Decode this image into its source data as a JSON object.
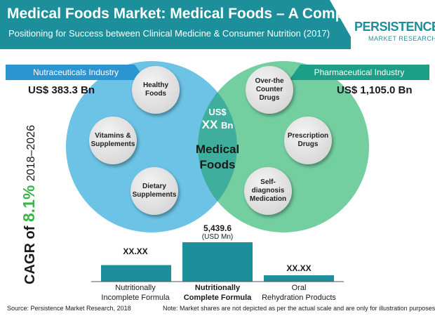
{
  "header": {
    "title": "Medical Foods Market: Medical Foods – A Comparison",
    "subtitle": "Positioning for Success between Clinical Medicine & Consumer Nutrition (2017)"
  },
  "logo": {
    "top": "PERSISTENCE",
    "bottom": "MARKET RESEARCH"
  },
  "left_segment": {
    "label": "Nutraceuticals Industry",
    "value": "US$ 383.3 Bn"
  },
  "right_segment": {
    "label": "Pharmaceutical Industry",
    "value": "US$ 1,105.0 Bn"
  },
  "left_bubbles": [
    {
      "line1": "Healthy",
      "line2": "Foods"
    },
    {
      "line1": "Vitamins &",
      "line2": "Supplements"
    },
    {
      "line1": "Dietary",
      "line2": "Supplements"
    }
  ],
  "right_bubbles": [
    {
      "line1": "Over-the",
      "line2": "Counter Drugs"
    },
    {
      "line1": "Prescription",
      "line2": "Drugs"
    },
    {
      "line1": "Self-diagnosis",
      "line2": "Medication"
    }
  ],
  "center": {
    "currency": "US$",
    "value": "XX",
    "unit": "Bn",
    "line1": "Medical",
    "line2": "Foods"
  },
  "cagr": {
    "prefix": "CAGR of",
    "value": "8.1%",
    "years": "2018–2026"
  },
  "colors": {
    "header": "#1d8f9b",
    "left_circle": "#6cc3e6",
    "right_circle": "#74cfa0",
    "overlap": "#3fae9c",
    "bar": "#1d8f9b",
    "cagr": "#39b54a"
  },
  "chart_data": {
    "type": "bar",
    "categories": [
      {
        "line1": "Nutritionally",
        "line2": "Incomplete Formula"
      },
      {
        "line1": "Nutritionally",
        "line2": "Complete Formula"
      },
      {
        "line1": "Oral",
        "line2": "Rehydration Products"
      }
    ],
    "values": [
      null,
      5439.6,
      null
    ],
    "relative_values": [
      0.42,
      1.0,
      0.16
    ],
    "value_labels": [
      "XX.XX",
      "5,439.6",
      "XX.XX"
    ],
    "unit": "(USD Mn)",
    "highlight_index": 1
  },
  "footer": {
    "source": "Source: Persistence Market Research, 2018",
    "note": "Note: Market shares are not depicted as per the actual scale and are only for illustration purposes."
  }
}
